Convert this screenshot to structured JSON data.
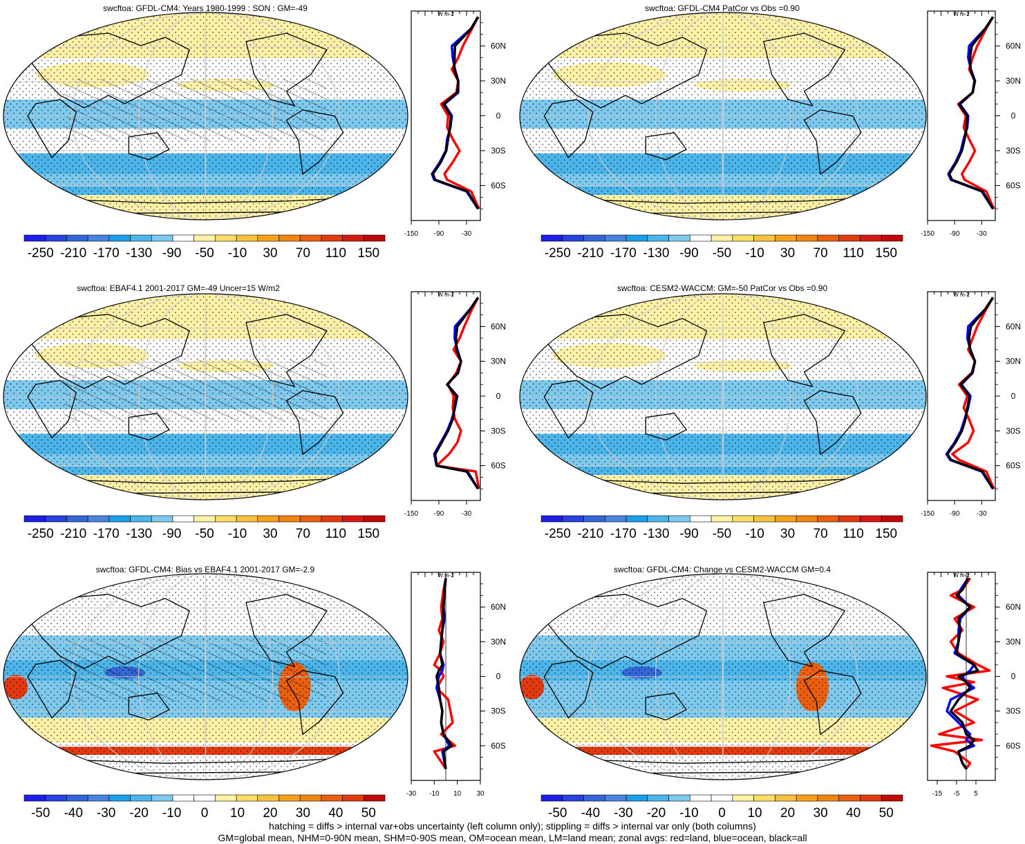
{
  "panels": [
    {
      "title": "swcftoa: GFDL-CM4: Years 1980-1999 : SON : GM=-49",
      "colorbar": {
        "levels": [
          "-250",
          "-210",
          "-170",
          "-130",
          "-90",
          "-50",
          "-10",
          "30",
          "70",
          "110",
          "150"
        ],
        "min": -270,
        "max": 170
      },
      "profile": {
        "xlim": [
          -150,
          0
        ],
        "xticks": [
          "-150",
          "-90",
          "-30"
        ],
        "unit": "W m-2",
        "lat_labels": [
          "60N",
          "30N",
          "0",
          "30S",
          "60S"
        ],
        "lines": {
          "land": {
            "lat": [
              85,
              75,
              60,
              50,
              40,
              30,
              20,
              10,
              0,
              -10,
              -20,
              -30,
              -40,
              -50,
              -55,
              -65,
              -80
            ],
            "val": [
              -5,
              -18,
              -38,
              -48,
              -62,
              -48,
              -52,
              -85,
              -70,
              -72,
              -60,
              -45,
              -60,
              -78,
              -72,
              -20,
              -3
            ]
          },
          "ocean": {
            "lat": [
              85,
              75,
              60,
              50,
              40,
              30,
              20,
              10,
              0,
              -10,
              -20,
              -30,
              -40,
              -50,
              -55,
              -65,
              -80
            ],
            "val": [
              -5,
              -20,
              -62,
              -60,
              -55,
              -48,
              -48,
              -78,
              -62,
              -65,
              -72,
              -75,
              -88,
              -105,
              -100,
              -30,
              -5
            ]
          },
          "all": {
            "lat": [
              85,
              75,
              60,
              50,
              40,
              30,
              20,
              10,
              0,
              -10,
              -20,
              -30,
              -40,
              -50,
              -55,
              -65,
              -80
            ],
            "val": [
              -5,
              -20,
              -55,
              -56,
              -57,
              -48,
              -50,
              -80,
              -64,
              -66,
              -70,
              -74,
              -86,
              -103,
              -98,
              -28,
              -5
            ]
          }
        }
      }
    },
    {
      "title": "swcftoa: GFDL-CM4 PatCor vs Obs =0.90",
      "colorbar": {
        "levels": [
          "-250",
          "-210",
          "-170",
          "-130",
          "-90",
          "-50",
          "-10",
          "30",
          "70",
          "110",
          "150"
        ],
        "min": -270,
        "max": 170
      },
      "profile": {
        "xlim": [
          -150,
          0
        ],
        "xticks": [
          "-150",
          "-90",
          "-30"
        ],
        "unit": "W m-2",
        "lat_labels": [
          "60N",
          "30N",
          "0",
          "30S",
          "60S"
        ],
        "lines": {
          "land": {
            "lat": [
              85,
              75,
              60,
              50,
              40,
              30,
              20,
              10,
              0,
              -10,
              -20,
              -30,
              -40,
              -50,
              -55,
              -65,
              -80
            ],
            "val": [
              -5,
              -20,
              -40,
              -50,
              -58,
              -45,
              -50,
              -82,
              -65,
              -70,
              -58,
              -45,
              -58,
              -74,
              -68,
              -20,
              -3
            ]
          },
          "ocean": {
            "lat": [
              85,
              75,
              60,
              50,
              40,
              30,
              20,
              10,
              0,
              -10,
              -20,
              -30,
              -40,
              -50,
              -55,
              -65,
              -80
            ],
            "val": [
              -5,
              -22,
              -58,
              -60,
              -54,
              -45,
              -50,
              -78,
              -60,
              -62,
              -70,
              -76,
              -88,
              -104,
              -98,
              -30,
              -5
            ]
          },
          "all": {
            "lat": [
              85,
              75,
              60,
              50,
              40,
              30,
              20,
              10,
              0,
              -10,
              -20,
              -30,
              -40,
              -50,
              -55,
              -65,
              -80
            ],
            "val": [
              -5,
              -22,
              -52,
              -56,
              -55,
              -46,
              -50,
              -80,
              -62,
              -64,
              -68,
              -74,
              -86,
              -102,
              -96,
              -28,
              -5
            ]
          }
        }
      }
    },
    {
      "title": "swcftoa: EBAF4.1 2001-2017 GM=-49 Uncer=15 W/m2",
      "colorbar": {
        "levels": [
          "-250",
          "-210",
          "-170",
          "-130",
          "-90",
          "-50",
          "-10",
          "30",
          "70",
          "110",
          "150"
        ],
        "min": -270,
        "max": 170
      },
      "profile": {
        "xlim": [
          -150,
          0
        ],
        "xticks": [
          "-150",
          "-90",
          "-30"
        ],
        "unit": "W m-2",
        "lat_labels": [
          "60N",
          "30N",
          "0",
          "30S",
          "60S"
        ],
        "lines": {
          "land": {
            "lat": [
              85,
              75,
              60,
              50,
              40,
              30,
              20,
              10,
              0,
              -10,
              -20,
              -30,
              -40,
              -50,
              -60,
              -65,
              -80
            ],
            "val": [
              -5,
              -18,
              -35,
              -45,
              -58,
              -42,
              -52,
              -70,
              -58,
              -60,
              -55,
              -42,
              -50,
              -68,
              -95,
              -10,
              -3
            ]
          },
          "ocean": {
            "lat": [
              85,
              75,
              60,
              50,
              40,
              30,
              20,
              10,
              0,
              -10,
              -20,
              -30,
              -40,
              -50,
              -60,
              -65,
              -80
            ],
            "val": [
              -5,
              -22,
              -55,
              -56,
              -50,
              -42,
              -48,
              -72,
              -50,
              -55,
              -62,
              -72,
              -86,
              -100,
              -95,
              -30,
              -5
            ]
          },
          "all": {
            "lat": [
              85,
              75,
              60,
              50,
              40,
              30,
              20,
              10,
              0,
              -10,
              -20,
              -30,
              -40,
              -50,
              -60,
              -65,
              -80
            ],
            "val": [
              -5,
              -22,
              -50,
              -53,
              -52,
              -42,
              -49,
              -72,
              -52,
              -56,
              -60,
              -70,
              -84,
              -98,
              -95,
              -28,
              -5
            ]
          }
        }
      }
    },
    {
      "title": "swcftoa: CESM2-WACCM: GM=-50 PatCor vs Obs =0.90",
      "colorbar": {
        "levels": [
          "-250",
          "-210",
          "-170",
          "-130",
          "-90",
          "-50",
          "-10",
          "30",
          "70",
          "110",
          "150"
        ],
        "min": -270,
        "max": 170
      },
      "profile": {
        "xlim": [
          -150,
          0
        ],
        "xticks": [
          "-150",
          "-90",
          "-30"
        ],
        "unit": "W m-2",
        "lat_labels": [
          "60N",
          "30N",
          "0",
          "30S",
          "60S"
        ],
        "lines": {
          "land": {
            "lat": [
              85,
              75,
              60,
              50,
              40,
              30,
              20,
              10,
              0,
              -10,
              -20,
              -30,
              -40,
              -50,
              -55,
              -65,
              -80
            ],
            "val": [
              -5,
              -20,
              -40,
              -50,
              -60,
              -45,
              -52,
              -80,
              -62,
              -70,
              -58,
              -48,
              -60,
              -95,
              -80,
              -20,
              -3
            ]
          },
          "ocean": {
            "lat": [
              85,
              75,
              60,
              50,
              40,
              30,
              20,
              10,
              0,
              -10,
              -20,
              -30,
              -40,
              -50,
              -55,
              -65,
              -80
            ],
            "val": [
              -5,
              -22,
              -60,
              -62,
              -55,
              -45,
              -50,
              -75,
              -55,
              -60,
              -68,
              -76,
              -90,
              -108,
              -100,
              -30,
              -5
            ]
          },
          "all": {
            "lat": [
              85,
              75,
              60,
              50,
              40,
              30,
              20,
              10,
              0,
              -10,
              -20,
              -30,
              -40,
              -50,
              -55,
              -65,
              -80
            ],
            "val": [
              -5,
              -22,
              -54,
              -58,
              -56,
              -45,
              -51,
              -77,
              -57,
              -62,
              -66,
              -74,
              -88,
              -106,
              -98,
              -28,
              -5
            ]
          }
        }
      }
    },
    {
      "title": "swcftoa: GFDL-CM4: Bias vs EBAF4.1 2001-2017  GM=-2.9",
      "colorbar": {
        "levels": [
          "-50",
          "-40",
          "-30",
          "-20",
          "-10",
          "0",
          "10",
          "20",
          "30",
          "40",
          "50"
        ],
        "min": -55,
        "max": 55
      },
      "profile": {
        "xlim": [
          -30,
          30
        ],
        "xticks": [
          "-30",
          "-10",
          "10",
          "30"
        ],
        "unit": "W m-2",
        "lat_labels": [
          "60N",
          "30N",
          "0",
          "30S",
          "60S"
        ],
        "lines": {
          "land": {
            "lat": [
              85,
              75,
              60,
              50,
              40,
              30,
              20,
              10,
              5,
              0,
              -10,
              -20,
              -30,
              -40,
              -50,
              -60,
              -65,
              -80
            ],
            "val": [
              0,
              -2,
              -4,
              -3,
              -6,
              -2,
              -5,
              -10,
              -4,
              -2,
              -8,
              2,
              4,
              6,
              -4,
              8,
              -10,
              0
            ]
          },
          "ocean": {
            "lat": [
              85,
              75,
              60,
              50,
              40,
              30,
              20,
              10,
              5,
              0,
              -10,
              -20,
              -30,
              -40,
              -50,
              -60,
              -65,
              -80
            ],
            "val": [
              0,
              -1,
              -2,
              -1,
              -3,
              -4,
              -5,
              -2,
              -3,
              -6,
              -8,
              -5,
              -3,
              -4,
              -2,
              3,
              -3,
              0
            ]
          },
          "all": {
            "lat": [
              85,
              75,
              60,
              50,
              40,
              30,
              20,
              10,
              5,
              0,
              -10,
              -20,
              -30,
              -40,
              -50,
              -60,
              -65,
              -80
            ],
            "val": [
              0,
              -1,
              -2,
              -2,
              -3,
              -4,
              -5,
              -3,
              -6,
              -8,
              -6,
              -5,
              -3,
              -4,
              -2,
              5,
              -2,
              0
            ]
          }
        }
      }
    },
    {
      "title": "swcftoa: GFDL-CM4: Change vs CESM2-WACCM GM=0.4",
      "colorbar": {
        "levels": [
          "-50",
          "-40",
          "-30",
          "-20",
          "-10",
          "0",
          "10",
          "20",
          "30",
          "40",
          "50"
        ],
        "min": -55,
        "max": 55
      },
      "profile": {
        "xlim": [
          -20,
          15
        ],
        "xticks": [
          "-15",
          "-5",
          "5"
        ],
        "unit": "W m-2",
        "lat_labels": [
          "60N",
          "30N",
          "0",
          "30S",
          "60S"
        ],
        "lines": {
          "land": {
            "lat": [
              85,
              75,
              70,
              60,
              50,
              40,
              30,
              20,
              10,
              5,
              0,
              -5,
              -10,
              -20,
              -30,
              -40,
              -50,
              -55,
              -60,
              -65,
              -75,
              -80
            ],
            "val": [
              2,
              -2,
              -8,
              4,
              -6,
              -2,
              -8,
              -4,
              6,
              12,
              -10,
              4,
              -12,
              6,
              -6,
              4,
              -14,
              8,
              -18,
              -6,
              2,
              0
            ]
          },
          "ocean": {
            "lat": [
              85,
              75,
              70,
              60,
              50,
              40,
              30,
              20,
              10,
              5,
              0,
              -5,
              -10,
              -20,
              -30,
              -40,
              -50,
              -55,
              -60,
              -65,
              -75,
              -80
            ],
            "val": [
              1,
              -3,
              -4,
              2,
              -3,
              -4,
              -4,
              -6,
              4,
              2,
              -2,
              0,
              4,
              -8,
              -10,
              -4,
              2,
              0,
              4,
              -4,
              -2,
              0
            ]
          },
          "all": {
            "lat": [
              85,
              75,
              70,
              60,
              50,
              40,
              30,
              20,
              10,
              5,
              0,
              -5,
              -10,
              -20,
              -30,
              -40,
              -50,
              -55,
              -60,
              -65,
              -75,
              -80
            ],
            "val": [
              1,
              -2,
              -5,
              2,
              -4,
              -3,
              -4,
              -5,
              4,
              6,
              -4,
              0,
              2,
              -4,
              -8,
              -2,
              0,
              4,
              2,
              -4,
              -2,
              0
            ]
          }
        }
      }
    }
  ],
  "captions": {
    "line1": "hatching = diffs > internal var+obs uncertainty (left column only); stippling = diffs > internal var only (both columns)",
    "line2": "GM=global mean, NHM=0-90N mean, SHM=0-90S mean, OM=ocean mean, LM=land mean; zonal avgs: red=land, blue=ocean, black=all"
  },
  "colors": {
    "full": [
      "#1e1ee8",
      "#2641e0",
      "#3366d6",
      "#4a82dd",
      "#1a9fe8",
      "#4cb5ea",
      "#7ec9ee",
      "#ffffff",
      "#fff2a8",
      "#fddd66",
      "#f8c240",
      "#f5a21a",
      "#f08512",
      "#ea6010",
      "#e23a10",
      "#d41812",
      "#c00808"
    ],
    "diff": [
      "#1e1ee8",
      "#2641e0",
      "#3366d6",
      "#4a82dd",
      "#1a9fe8",
      "#4cb5ea",
      "#7ec9ee",
      "#ffffff",
      "#ffffff",
      "#fff2a8",
      "#fddd66",
      "#f8c240",
      "#f5a21a",
      "#f08512",
      "#ea6010",
      "#e23a10",
      "#c00808"
    ],
    "land": "#ff0000",
    "ocean": "#0000ff",
    "all": "#000000"
  }
}
